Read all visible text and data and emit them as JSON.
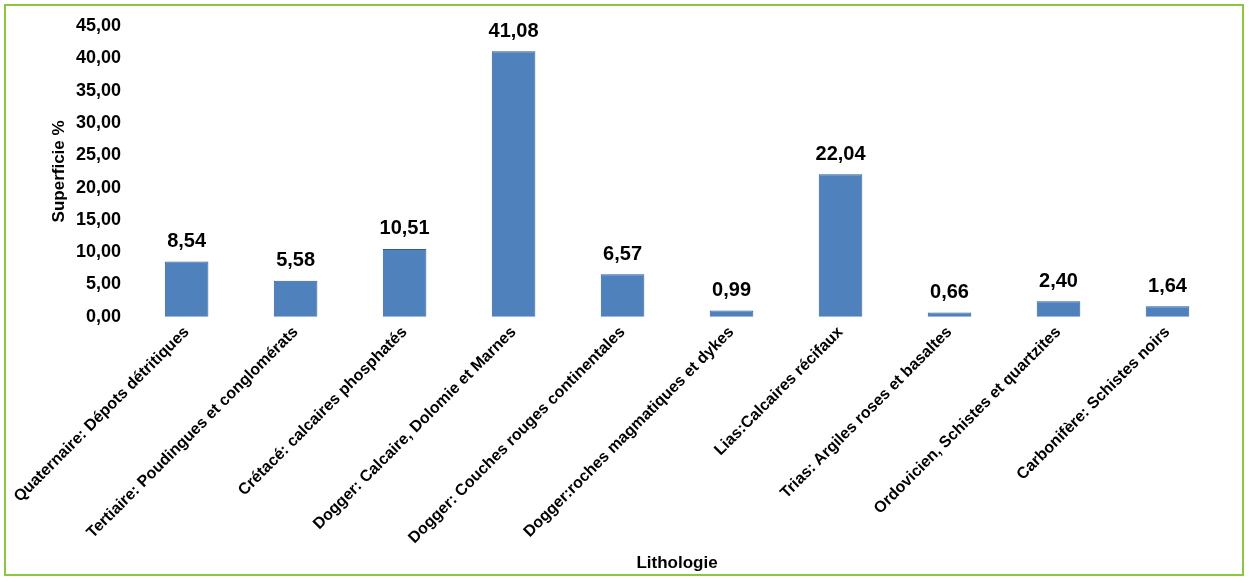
{
  "chart_data": {
    "type": "bar",
    "xlabel": "Lithologie",
    "ylabel": "Superficie %",
    "categories": [
      "Quaternaire: Dépots détritiques",
      "Tertiaire: Poudingues et conglomérats",
      "Crétacé: calcaires phosphatés",
      "Dogger: Calcaire, Dolomie et Marnes",
      "Dogger: Couches rouges continentales",
      "Dogger:roches magmatiques et dykes",
      "Lias:Calcaires récifaux",
      "Trias: Argiles roses et basaltes",
      "Ordovicien, Schistes et quartzites",
      "Carbonifère: Schistes noirs"
    ],
    "values": [
      8.54,
      5.58,
      10.51,
      41.08,
      6.57,
      0.99,
      22.04,
      0.66,
      2.4,
      1.64
    ],
    "value_labels": [
      "8,54",
      "5,58",
      "10,51",
      "41,08",
      "6,57",
      "0,99",
      "22,04",
      "0,66",
      "2,40",
      "1,64"
    ],
    "color": "#4f81bd",
    "ylim": [
      0,
      45
    ],
    "yticks": [
      {
        "value": 0,
        "label": "0,00"
      },
      {
        "value": 5,
        "label": "5,00"
      },
      {
        "value": 10,
        "label": "10,00"
      },
      {
        "value": 15,
        "label": "15,00"
      },
      {
        "value": 20,
        "label": "20,00"
      },
      {
        "value": 25,
        "label": "25,00"
      },
      {
        "value": 30,
        "label": "30,00"
      },
      {
        "value": 35,
        "label": "35,00"
      },
      {
        "value": 40,
        "label": "40,00"
      },
      {
        "value": 45,
        "label": "45,00"
      }
    ],
    "grid": false,
    "legend": false
  }
}
